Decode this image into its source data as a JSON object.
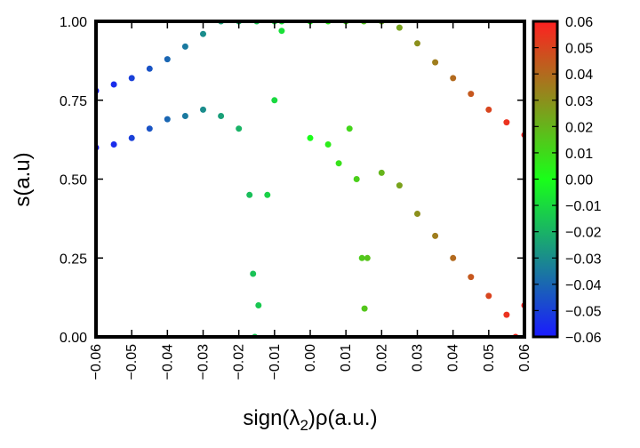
{
  "chart_data": {
    "type": "scatter",
    "title": "",
    "xlabel": "sign(λ2)ρ(a.u.)",
    "xlabel_parts": {
      "prefix": "sign(λ",
      "sub": "2",
      "suffix": ")ρ(a.u.)"
    },
    "ylabel": "s(a.u)",
    "xlim": [
      -0.06,
      0.06
    ],
    "ylim": [
      0.0,
      1.0
    ],
    "x_ticks": [
      -0.06,
      -0.05,
      -0.04,
      -0.03,
      -0.02,
      -0.01,
      0.0,
      0.01,
      0.02,
      0.03,
      0.04,
      0.05,
      0.06
    ],
    "x_tick_labels": [
      "−0.06",
      "−0.05",
      "−0.04",
      "−0.03",
      "−0.02",
      "−0.01",
      "0.00",
      "0.01",
      "0.02",
      "0.03",
      "0.04",
      "0.05",
      "0.06"
    ],
    "y_ticks": [
      0.0,
      0.25,
      0.5,
      0.75,
      1.0
    ],
    "y_tick_labels": [
      "0.00",
      "0.25",
      "0.50",
      "0.75",
      "1.00"
    ],
    "colorbar": {
      "range": [
        -0.06,
        0.06
      ],
      "ticks": [
        0.06,
        0.05,
        0.04,
        0.03,
        0.02,
        0.01,
        0.0,
        -0.01,
        -0.02,
        -0.03,
        -0.04,
        -0.05,
        -0.06
      ],
      "tick_labels": [
        "0.06",
        "0.05",
        "0.04",
        "0.03",
        "0.02",
        "0.01",
        "0.00",
        "−0.01",
        "−0.02",
        "−0.03",
        "−0.04",
        "−0.05",
        "−0.06"
      ],
      "colors": {
        "low": "#1a1aff",
        "mid": "#19ff19",
        "high": "#ff2020"
      }
    },
    "series": [
      {
        "region": "left-upper",
        "points": [
          [
            -0.06,
            0.78
          ],
          [
            -0.055,
            0.8
          ],
          [
            -0.05,
            0.82
          ],
          [
            -0.045,
            0.85
          ],
          [
            -0.04,
            0.88
          ],
          [
            -0.035,
            0.92
          ],
          [
            -0.03,
            0.96
          ],
          [
            -0.025,
            1.0
          ],
          [
            -0.02,
            1.0
          ],
          [
            -0.015,
            1.0
          ],
          [
            -0.01,
            1.0
          ],
          [
            -0.008,
            1.0
          ]
        ]
      },
      {
        "region": "left-lower",
        "points": [
          [
            -0.06,
            0.6
          ],
          [
            -0.055,
            0.61
          ],
          [
            -0.05,
            0.63
          ],
          [
            -0.045,
            0.66
          ],
          [
            -0.04,
            0.69
          ],
          [
            -0.035,
            0.7
          ],
          [
            -0.03,
            0.72
          ],
          [
            -0.025,
            0.7
          ],
          [
            -0.02,
            0.66
          ],
          [
            -0.017,
            0.45
          ],
          [
            -0.016,
            0.2
          ],
          [
            -0.0155,
            0.0
          ],
          [
            -0.0145,
            0.1
          ],
          [
            -0.012,
            0.45
          ],
          [
            -0.01,
            0.75
          ],
          [
            -0.008,
            0.97
          ]
        ]
      },
      {
        "region": "right-upper",
        "points": [
          [
            0.0,
            1.0
          ],
          [
            0.005,
            1.0
          ],
          [
            0.01,
            1.0
          ],
          [
            0.015,
            1.0
          ],
          [
            0.02,
            1.0
          ],
          [
            0.025,
            0.98
          ],
          [
            0.03,
            0.93
          ],
          [
            0.035,
            0.87
          ],
          [
            0.04,
            0.82
          ],
          [
            0.045,
            0.77
          ],
          [
            0.05,
            0.72
          ],
          [
            0.055,
            0.68
          ],
          [
            0.06,
            0.64
          ]
        ]
      },
      {
        "region": "right-lower",
        "points": [
          [
            0.0,
            0.63
          ],
          [
            0.005,
            0.61
          ],
          [
            0.008,
            0.55
          ],
          [
            0.011,
            0.66
          ],
          [
            0.013,
            0.5
          ],
          [
            0.0145,
            0.25
          ],
          [
            0.0152,
            0.09
          ],
          [
            0.016,
            0.25
          ],
          [
            0.02,
            0.52
          ],
          [
            0.025,
            0.48
          ],
          [
            0.03,
            0.39
          ],
          [
            0.035,
            0.32
          ],
          [
            0.04,
            0.25
          ],
          [
            0.045,
            0.19
          ],
          [
            0.05,
            0.13
          ],
          [
            0.055,
            0.07
          ],
          [
            0.0575,
            0.0
          ],
          [
            0.06,
            0.1
          ]
        ]
      }
    ]
  }
}
